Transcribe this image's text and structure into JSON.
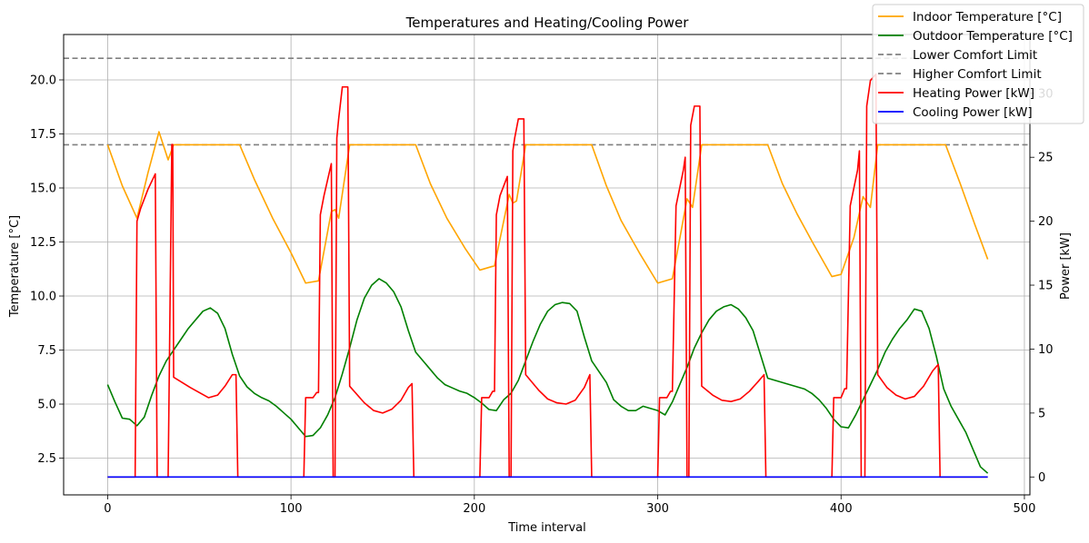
{
  "chart_data": {
    "type": "line",
    "title": "Temperatures and Heating/Cooling Power",
    "xlabel": "Time interval",
    "ylabel_left": "Temperature [°C]",
    "ylabel_right": "Power [kW]",
    "xlim": [
      -24,
      503
    ],
    "ylim_left": [
      0.8,
      22.1
    ],
    "ylim_right": [
      -1.4,
      34.6
    ],
    "x_ticks": [
      0,
      100,
      200,
      300,
      400,
      500
    ],
    "y_ticks_left": [
      2.5,
      5.0,
      7.5,
      10.0,
      12.5,
      15.0,
      17.5,
      20.0
    ],
    "y_ticks_right": [
      0,
      5,
      10,
      15,
      20,
      25,
      30
    ],
    "grid": true,
    "legend_position": "upper-right",
    "series": [
      {
        "name": "Indoor Temperature [°C]",
        "color": "#ffa500",
        "axis": "left",
        "style": "solid",
        "x": [
          0,
          8,
          16,
          22,
          28,
          33,
          36,
          40,
          50,
          60,
          72,
          80,
          90,
          100,
          108,
          115,
          122,
          124,
          126,
          132,
          140,
          150,
          160,
          168,
          176,
          185,
          195,
          203,
          211,
          219,
          221,
          223,
          228,
          240,
          250,
          260,
          264,
          272,
          280,
          290,
          300,
          308,
          316,
          319,
          324,
          330,
          340,
          350,
          360,
          368,
          376,
          385,
          395,
          400,
          407,
          412,
          416,
          420,
          430,
          440,
          450,
          457,
          465,
          473,
          480
        ],
        "values": [
          17.0,
          15.1,
          13.6,
          15.7,
          17.6,
          16.3,
          17.0,
          17.0,
          17.0,
          17.0,
          17.0,
          15.4,
          13.6,
          12.0,
          10.6,
          10.7,
          13.9,
          14.0,
          13.6,
          17.0,
          17.0,
          17.0,
          17.0,
          17.0,
          15.2,
          13.6,
          12.2,
          11.2,
          11.4,
          14.7,
          14.3,
          14.4,
          17.0,
          17.0,
          17.0,
          17.0,
          17.0,
          15.1,
          13.5,
          12.0,
          10.6,
          10.8,
          14.5,
          14.1,
          17.0,
          17.0,
          17.0,
          17.0,
          17.0,
          15.2,
          13.8,
          12.4,
          10.9,
          11.0,
          12.7,
          14.6,
          14.1,
          17.0,
          17.0,
          17.0,
          17.0,
          17.0,
          15.2,
          13.3,
          11.7
        ]
      },
      {
        "name": "Outdoor Temperature [°C]",
        "color": "#008000",
        "axis": "left",
        "style": "solid",
        "x": [
          0,
          4,
          8,
          12,
          16,
          20,
          24,
          28,
          32,
          36,
          40,
          44,
          48,
          52,
          56,
          60,
          64,
          68,
          72,
          76,
          80,
          84,
          88,
          92,
          96,
          100,
          104,
          108,
          112,
          116,
          120,
          124,
          128,
          132,
          136,
          140,
          144,
          148,
          152,
          156,
          160,
          164,
          168,
          172,
          176,
          180,
          184,
          188,
          192,
          196,
          200,
          204,
          208,
          212,
          216,
          220,
          224,
          228,
          232,
          236,
          240,
          244,
          248,
          252,
          256,
          260,
          264,
          268,
          272,
          276,
          280,
          284,
          288,
          292,
          296,
          300,
          304,
          308,
          312,
          316,
          320,
          324,
          328,
          332,
          336,
          340,
          344,
          348,
          352,
          356,
          360,
          364,
          368,
          372,
          376,
          380,
          384,
          388,
          392,
          396,
          400,
          404,
          408,
          412,
          416,
          420,
          424,
          428,
          432,
          436,
          440,
          444,
          448,
          452,
          456,
          460,
          464,
          468,
          472,
          476,
          480
        ],
        "values": [
          5.9,
          5.1,
          4.35,
          4.3,
          4.0,
          4.4,
          5.4,
          6.3,
          7.0,
          7.5,
          8.0,
          8.5,
          8.9,
          9.3,
          9.45,
          9.2,
          8.5,
          7.3,
          6.3,
          5.8,
          5.5,
          5.3,
          5.15,
          4.9,
          4.6,
          4.3,
          3.9,
          3.5,
          3.55,
          3.9,
          4.5,
          5.3,
          6.4,
          7.6,
          8.9,
          9.9,
          10.5,
          10.8,
          10.6,
          10.2,
          9.5,
          8.4,
          7.4,
          7.0,
          6.6,
          6.2,
          5.9,
          5.75,
          5.6,
          5.5,
          5.3,
          5.05,
          4.75,
          4.7,
          5.2,
          5.5,
          6.1,
          7.0,
          7.9,
          8.7,
          9.3,
          9.6,
          9.7,
          9.65,
          9.3,
          8.1,
          7.0,
          6.5,
          6.0,
          5.2,
          4.9,
          4.7,
          4.7,
          4.9,
          4.8,
          4.7,
          4.5,
          5.1,
          5.9,
          6.7,
          7.6,
          8.3,
          8.9,
          9.3,
          9.5,
          9.6,
          9.4,
          9.0,
          8.4,
          7.3,
          6.2,
          6.1,
          6.0,
          5.9,
          5.8,
          5.7,
          5.5,
          5.2,
          4.8,
          4.3,
          3.95,
          3.9,
          4.5,
          5.2,
          5.9,
          6.6,
          7.4,
          8.0,
          8.5,
          8.9,
          9.4,
          9.3,
          8.5,
          7.2,
          5.7,
          4.9,
          4.3,
          3.7,
          2.9,
          2.1,
          1.8
        ]
      },
      {
        "name": "Lower Comfort Limit",
        "color": "#808080",
        "axis": "left",
        "style": "dashed",
        "x": [
          -24,
          503
        ],
        "values": [
          17.0,
          17.0
        ]
      },
      {
        "name": "Higher Comfort Limit",
        "color": "#808080",
        "axis": "left",
        "style": "dashed",
        "x": [
          -24,
          503
        ],
        "values": [
          21.0,
          21.0
        ]
      },
      {
        "name": "Heating Power [kW]",
        "color": "#ff0000",
        "axis": "right",
        "style": "solid",
        "x": [
          0,
          14,
          15,
          16,
          18,
          22,
          26,
          27,
          27.5,
          28,
          32,
          33,
          35,
          35.5,
          36,
          45,
          50,
          55,
          60,
          64,
          68,
          70,
          71,
          72,
          106,
          107,
          108,
          112,
          114,
          115,
          116,
          118,
          122,
          123,
          124,
          125,
          126,
          128,
          131,
          132,
          140,
          145,
          150,
          155,
          160,
          164,
          166,
          167,
          168,
          201,
          203,
          204,
          208,
          210,
          211,
          212,
          214,
          218,
          219,
          220,
          221,
          222,
          224,
          227,
          228,
          235,
          240,
          245,
          250,
          255,
          260,
          263,
          264,
          265,
          299,
          300,
          301,
          305,
          307,
          308,
          310,
          314,
          315,
          316,
          317,
          318,
          320,
          323,
          324,
          330,
          335,
          340,
          345,
          350,
          355,
          358,
          359,
          360,
          393,
          395,
          396,
          400,
          402,
          403,
          405,
          409,
          410,
          411,
          412,
          413,
          414,
          416,
          419,
          420,
          425,
          430,
          435,
          440,
          445,
          450,
          453,
          454,
          455,
          480
        ],
        "values": [
          0,
          0,
          0,
          20.0,
          21.0,
          22.5,
          23.7,
          0,
          0,
          0,
          0,
          0,
          26.0,
          26.0,
          7.8,
          7.0,
          6.6,
          6.2,
          6.4,
          7.1,
          8.0,
          8.0,
          0,
          0,
          0,
          0,
          6.2,
          6.2,
          6.6,
          6.6,
          20.5,
          22.0,
          24.5,
          0,
          0,
          26.5,
          28.0,
          30.5,
          30.5,
          7.1,
          5.8,
          5.2,
          5.0,
          5.3,
          6.0,
          7.0,
          7.3,
          0,
          0,
          0,
          0,
          6.2,
          6.2,
          6.7,
          6.7,
          20.5,
          22.0,
          23.5,
          0,
          0,
          25.5,
          26.5,
          28.0,
          28.0,
          8.0,
          6.8,
          6.1,
          5.8,
          5.7,
          6.0,
          7.0,
          8.0,
          0,
          0,
          0,
          0,
          6.2,
          6.2,
          6.7,
          6.7,
          21.2,
          24.0,
          25.0,
          0,
          0,
          27.5,
          29.0,
          29.0,
          7.1,
          6.4,
          6.0,
          5.9,
          6.1,
          6.7,
          7.5,
          8.0,
          0,
          0,
          0,
          0,
          6.2,
          6.2,
          6.9,
          6.9,
          21.2,
          24.0,
          25.5,
          0,
          0,
          0,
          29.0,
          31.0,
          31.5,
          8.0,
          7.0,
          6.4,
          6.1,
          6.3,
          7.1,
          8.3,
          8.8,
          0,
          0,
          0
        ]
      },
      {
        "name": "Cooling Power [kW]",
        "color": "#0000ff",
        "axis": "right",
        "style": "solid",
        "x": [
          0,
          480
        ],
        "values": [
          0,
          0
        ]
      }
    ]
  }
}
